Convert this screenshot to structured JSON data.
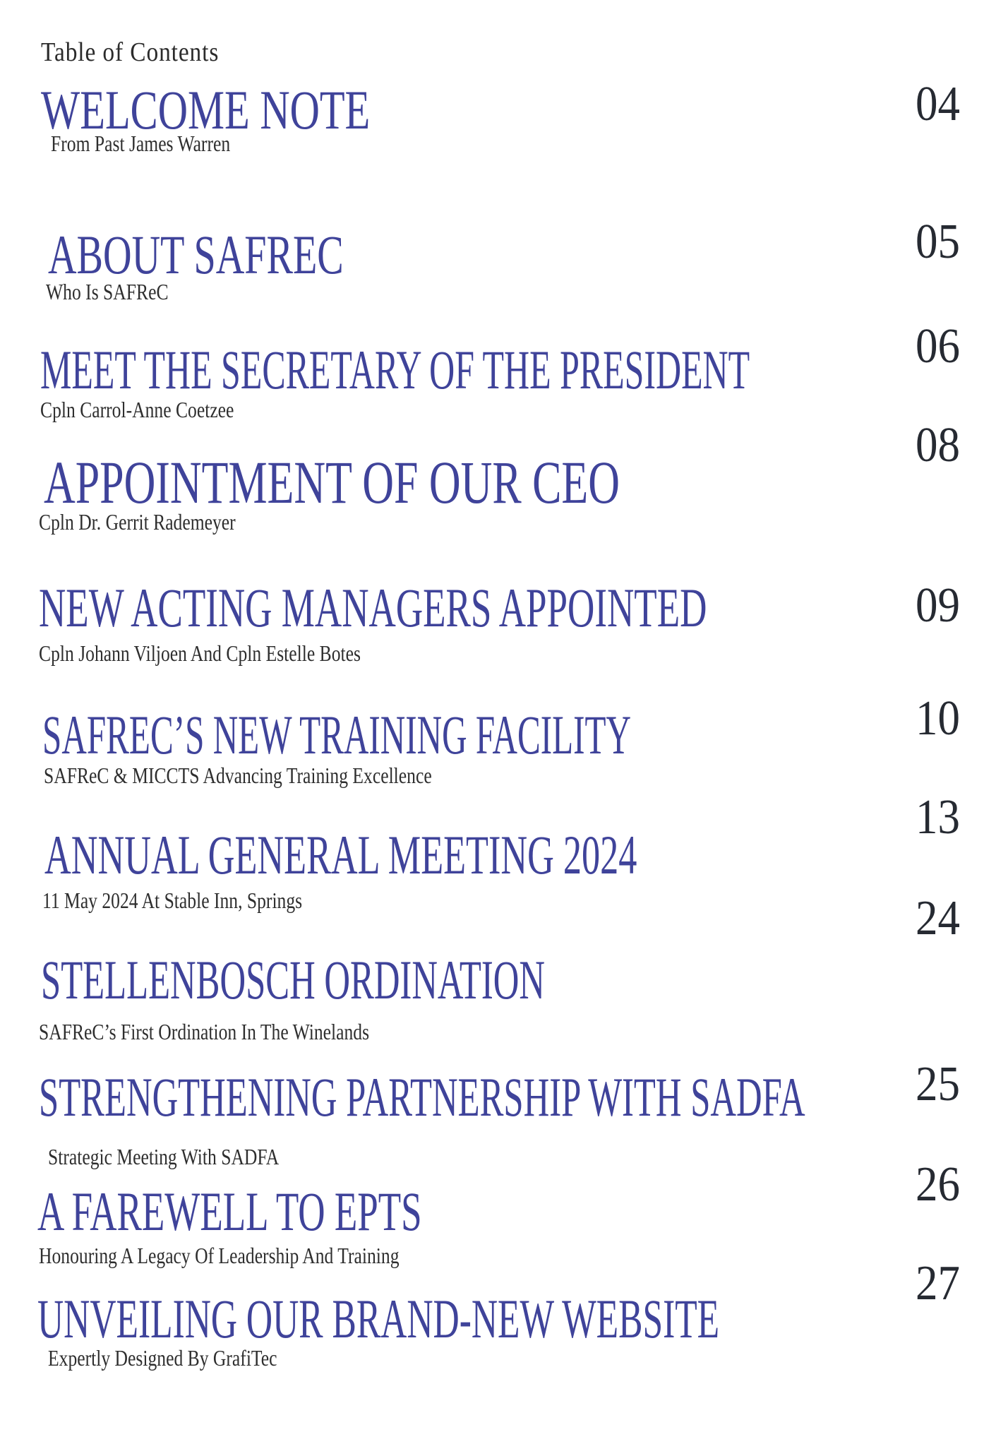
{
  "page": {
    "heading": "Table of Contents"
  },
  "colors": {
    "title_blue": "#3f439a",
    "subtitle_dark": "#2e2e2e",
    "page_number_dark": "#262a32",
    "background": "#ffffff"
  },
  "toc": {
    "entries": [
      {
        "title": "WELCOME NOTE",
        "subtitle": "From Past James Warren",
        "page": "04"
      },
      {
        "title": "ABOUT SAFREC",
        "subtitle": "Who Is SAFReC",
        "page": "05"
      },
      {
        "title": "MEET THE SECRETARY OF THE PRESIDENT",
        "subtitle": "Cpln Carrol-Anne Coetzee",
        "page": "06"
      },
      {
        "title": "APPOINTMENT OF OUR CEO",
        "subtitle": "Cpln Dr. Gerrit Rademeyer",
        "page": "08"
      },
      {
        "title": "NEW ACTING MANAGERS APPOINTED",
        "subtitle": "Cpln Johann Viljoen And Cpln Estelle Botes",
        "page": "09"
      },
      {
        "title": "SAFREC’S NEW TRAINING FACILITY",
        "subtitle": "SAFReC & MICCTS Advancing Training Excellence",
        "page": "10"
      },
      {
        "title": "ANNUAL GENERAL MEETING 2024",
        "subtitle": "11 May 2024 At Stable Inn, Springs",
        "page": "13"
      },
      {
        "title": "STELLENBOSCH ORDINATION",
        "subtitle": "SAFReC’s First Ordination In The Winelands",
        "page": "24"
      },
      {
        "title": "STRENGTHENING PARTNERSHIP WITH SADFA",
        "subtitle": "Strategic Meeting With SADFA",
        "page": "25"
      },
      {
        "title": "A FAREWELL TO EPTS",
        "subtitle": "Honouring A Legacy Of Leadership And Training",
        "page": "26"
      },
      {
        "title": "UNVEILING OUR BRAND-NEW WEBSITE",
        "subtitle": "Expertly Designed By GrafiTec",
        "page": "27"
      }
    ]
  }
}
